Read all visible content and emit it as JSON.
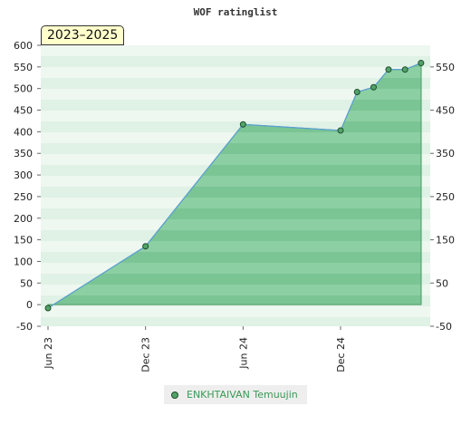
{
  "chart_data": {
    "type": "area",
    "title": "WOF ratinglist",
    "period_badge": "2023–2025",
    "ylim": [
      -50,
      600
    ],
    "y_ticks_left": [
      -50,
      0,
      50,
      100,
      150,
      200,
      250,
      300,
      350,
      400,
      450,
      500,
      550,
      600
    ],
    "y_ticks_right": [
      -50,
      50,
      150,
      250,
      350,
      450,
      550
    ],
    "x_ticks": [
      "Jun 23",
      "Dec 23",
      "Jun 24",
      "Dec 24"
    ],
    "series": [
      {
        "name": "ENKHTAIVAN Temuujin",
        "x": [
          "2023-06",
          "2023-12",
          "2024-06",
          "2024-12",
          "2025-01",
          "2025-02",
          "2025-03",
          "2025-04",
          "2025-05"
        ],
        "values": [
          -8,
          135,
          417,
          403,
          492,
          503,
          544,
          544,
          559
        ]
      }
    ],
    "grid": true,
    "legend_position": "bottom"
  },
  "colors": {
    "area_fill": "#7cc495",
    "line": "#5a9fd4",
    "marker": "#52a36a",
    "badge_bg": "#ffffcc",
    "legend_text": "#3a9a55"
  }
}
